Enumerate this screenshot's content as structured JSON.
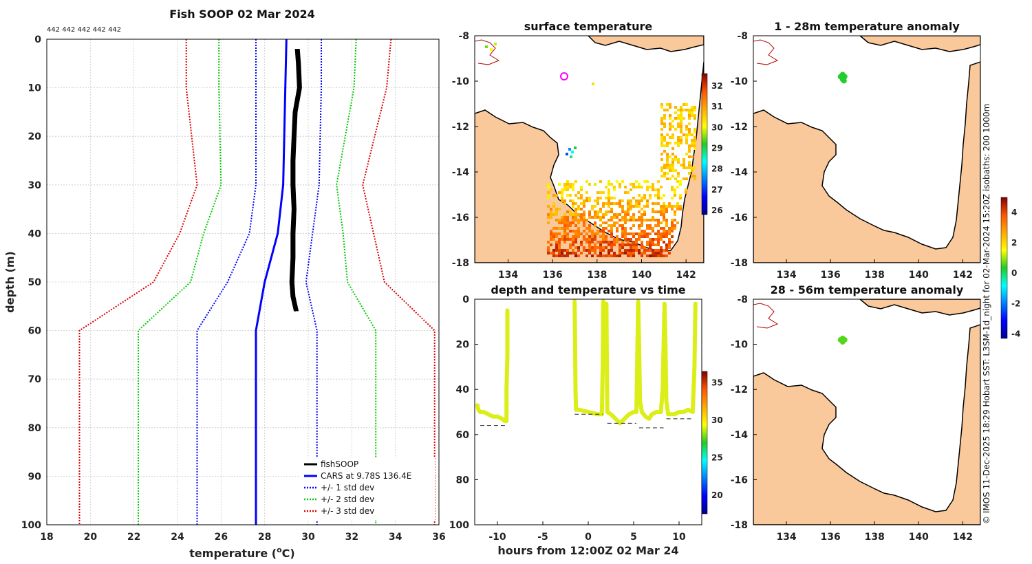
{
  "figure_title": "Fish SOOP 02 Mar 2024",
  "colors": {
    "land": "#f9c89b",
    "grid": "#c8c8c8",
    "fishsoop": "#000000",
    "cars": "#0000ff",
    "std1": "#0000ff",
    "std2": "#00cc00",
    "std3": "#dd0000",
    "track": "#dcee17"
  },
  "side_note": "© IMOS 11-Dec-2025 18:29 Hobart SST: L3SM-1d_night for 02-Mar-2024 15:20Z isobaths: 200  1000m",
  "chart_data": [
    {
      "id": "profile",
      "type": "line",
      "title": "Fish SOOP 02 Mar 2024",
      "header_counts": "442 442 442 442 442",
      "xlabel": "temperature (",
      "xlabel_unit": "o",
      "xlabel_tail": "C)",
      "ylabel": "depth (m)",
      "xlim": [
        18,
        36
      ],
      "ylim": [
        0,
        100
      ],
      "x_ticks": [
        18,
        20,
        22,
        24,
        26,
        28,
        30,
        32,
        34,
        36
      ],
      "y_ticks": [
        0,
        10,
        20,
        30,
        40,
        50,
        60,
        70,
        80,
        90,
        100
      ],
      "depths": [
        0,
        10,
        30,
        40,
        50,
        60,
        100
      ],
      "series": [
        {
          "name": "fishSOOP",
          "color": "#000000",
          "style": "solid",
          "width": 4,
          "points": [
            [
              29.5,
              2
            ],
            [
              29.55,
              5
            ],
            [
              29.6,
              10
            ],
            [
              29.4,
              15
            ],
            [
              29.35,
              20
            ],
            [
              29.3,
              25
            ],
            [
              29.3,
              30
            ],
            [
              29.35,
              35
            ],
            [
              29.3,
              40
            ],
            [
              29.3,
              45
            ],
            [
              29.25,
              50
            ],
            [
              29.3,
              53
            ],
            [
              29.45,
              56
            ]
          ]
        },
        {
          "name": "CARS at 9.78S 136.4E",
          "color": "#0000ff",
          "style": "solid",
          "width": 3,
          "temps": [
            29.0,
            28.95,
            28.85,
            28.6,
            28.0,
            27.6,
            27.6
          ]
        },
        {
          "name": "+/- 1 std dev",
          "color": "#0000ff",
          "style": "dotted",
          "width": 2,
          "lower": [
            27.6,
            27.6,
            27.6,
            27.3,
            26.3,
            24.9,
            24.9
          ],
          "upper": [
            30.6,
            30.6,
            30.5,
            30.2,
            29.9,
            30.4,
            30.4
          ]
        },
        {
          "name": "+/- 2 std dev",
          "color": "#00cc00",
          "style": "dotted",
          "width": 2,
          "lower": [
            25.9,
            25.9,
            26.0,
            25.2,
            24.6,
            22.2,
            22.2
          ],
          "upper": [
            32.2,
            32.1,
            31.3,
            31.6,
            31.8,
            33.1,
            33.1
          ]
        },
        {
          "name": "+/- 3 std dev",
          "color": "#dd0000",
          "style": "dotted",
          "width": 2,
          "lower": [
            24.4,
            24.4,
            24.9,
            24.1,
            22.9,
            19.5,
            19.5
          ],
          "upper": [
            33.8,
            33.6,
            32.5,
            33.0,
            33.5,
            35.8,
            35.8
          ]
        }
      ]
    },
    {
      "id": "sst_map",
      "type": "heatmap",
      "title": "surface temperature",
      "xlim": [
        132.5,
        142.8
      ],
      "ylim": [
        -18,
        -8
      ],
      "x_ticks": [
        134,
        136,
        138,
        140,
        142
      ],
      "y_ticks": [
        -8,
        -10,
        -12,
        -14,
        -16,
        -18
      ],
      "colorbar": {
        "min": 25.8,
        "max": 32.6,
        "ticks": [
          26,
          27,
          28,
          29,
          30,
          31,
          32
        ]
      },
      "markers": [
        {
          "lon": 136.45,
          "lat": -9.75,
          "label": "vessel"
        }
      ]
    },
    {
      "id": "depth_time",
      "type": "scatter",
      "title": "depth and temperature vs time",
      "xlabel": "hours from 12:00Z 02 Mar 24",
      "xlim": [
        -12.5,
        12.5
      ],
      "ylim": [
        100,
        0
      ],
      "x_ticks": [
        -10,
        -5,
        0,
        5,
        10
      ],
      "y_ticks": [
        0,
        20,
        40,
        60,
        80,
        100
      ],
      "colorbar": {
        "min": 17.5,
        "max": 36.5,
        "ticks": [
          20,
          25,
          30,
          35
        ]
      },
      "track": [
        [
          -12.2,
          47
        ],
        [
          -12.1,
          49
        ],
        [
          -11.9,
          50
        ],
        [
          -11.5,
          50
        ],
        [
          -11,
          51
        ],
        [
          -10.5,
          52
        ],
        [
          -10,
          52
        ],
        [
          -9.5,
          53
        ],
        [
          -9.2,
          54
        ],
        [
          -9.0,
          54
        ],
        [
          -9.0,
          40
        ],
        [
          -8.9,
          25
        ],
        [
          -8.9,
          5
        ],
        [
          -1.5,
          1
        ],
        [
          -1.45,
          20
        ],
        [
          -1.4,
          40
        ],
        [
          -1.35,
          49
        ],
        [
          -1.0,
          49
        ],
        [
          0,
          50
        ],
        [
          1.0,
          51
        ],
        [
          1.5,
          51
        ],
        [
          1.6,
          30
        ],
        [
          1.65,
          1
        ],
        [
          1.75,
          5
        ],
        [
          1.8,
          25
        ],
        [
          2.0,
          2
        ],
        [
          2.05,
          30
        ],
        [
          2.1,
          50
        ],
        [
          2.5,
          51
        ],
        [
          3,
          53
        ],
        [
          3.5,
          55
        ],
        [
          4,
          53
        ],
        [
          4.5,
          51
        ],
        [
          5.0,
          50
        ],
        [
          5.3,
          50
        ],
        [
          5.4,
          25
        ],
        [
          5.5,
          1
        ],
        [
          5.6,
          20
        ],
        [
          5.7,
          45
        ],
        [
          5.9,
          50
        ],
        [
          6.3,
          52
        ],
        [
          6.7,
          53
        ],
        [
          7.0,
          51
        ],
        [
          7.5,
          50
        ],
        [
          8.0,
          50
        ],
        [
          8.2,
          40
        ],
        [
          8.3,
          20
        ],
        [
          8.4,
          2
        ],
        [
          8.5,
          20
        ],
        [
          8.6,
          45
        ],
        [
          8.8,
          51
        ],
        [
          9.5,
          51
        ],
        [
          10,
          50
        ],
        [
          10.5,
          50
        ],
        [
          11,
          49
        ],
        [
          11.5,
          50
        ],
        [
          11.7,
          30
        ],
        [
          11.8,
          2
        ]
      ],
      "bottom": [
        {
          "x": [
            -11.9,
            -8.9
          ],
          "depth": 56
        },
        {
          "x": [
            -1.5,
            1.6
          ],
          "depth": 51
        },
        {
          "x": [
            2.1,
            5.3
          ],
          "depth": 55
        },
        {
          "x": [
            5.6,
            8.3
          ],
          "depth": 57
        },
        {
          "x": [
            8.6,
            11.6
          ],
          "depth": 53
        }
      ]
    },
    {
      "id": "anomaly_1",
      "type": "heatmap",
      "title": "1 - 28m temperature anomaly",
      "xlim": [
        132.5,
        142.8
      ],
      "ylim": [
        -18,
        -8
      ],
      "x_ticks": [
        134,
        136,
        138,
        140,
        142
      ],
      "y_ticks": [
        -8,
        -10,
        -12,
        -14,
        -16,
        -18
      ],
      "markers": [
        {
          "lon": 136.55,
          "lat": -9.8,
          "value": 0.3
        }
      ]
    },
    {
      "id": "anomaly_2",
      "type": "heatmap",
      "title": "28 - 56m temperature anomaly",
      "xlim": [
        132.5,
        142.8
      ],
      "ylim": [
        -18,
        -8
      ],
      "x_ticks": [
        134,
        136,
        138,
        140,
        142
      ],
      "y_ticks": [
        -8,
        -10,
        -12,
        -14,
        -16,
        -18
      ],
      "colorbar": {
        "min": -4.3,
        "max": 5.0,
        "ticks": [
          -4,
          -2,
          0,
          2,
          4
        ]
      },
      "markers": [
        {
          "lon": 136.55,
          "lat": -9.8,
          "value": 0.6
        }
      ]
    }
  ]
}
